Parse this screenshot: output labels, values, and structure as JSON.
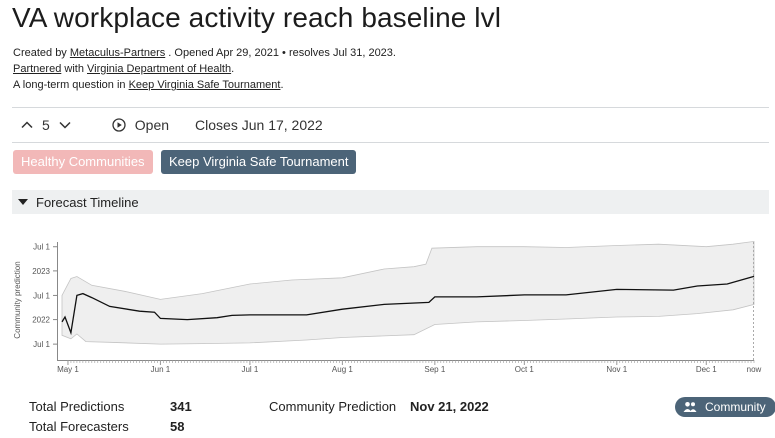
{
  "question": {
    "title": "VA workplace activity reach baseline lvl",
    "created_by_prefix": "Created by ",
    "creator": "Metaculus-Partners",
    "opened_resolves": " . Opened Apr 29, 2021 • resolves Jul 31, 2023.",
    "partnered_link": "Partnered",
    "partnered_with": " with ",
    "partner": "Virginia Department of Health",
    "partner_suffix": ".",
    "longterm_prefix": "A long-term question in ",
    "tournament_link": "Keep Virginia Safe Tournament",
    "longterm_suffix": "."
  },
  "toolbar": {
    "vote_count": "5",
    "status": "Open",
    "closes": "Closes Jun 17, 2022"
  },
  "tags": [
    "Healthy Communities",
    "Keep Virginia Safe Tournament"
  ],
  "forecast_section": {
    "label": "Forecast Timeline"
  },
  "stats": {
    "total_predictions_label": "Total Predictions",
    "total_predictions": "341",
    "total_forecasters_label": "Total Forecasters",
    "total_forecasters": "58",
    "community_prediction_label": "Community Prediction",
    "community_prediction": "Nov 21, 2022",
    "community_button": "Community"
  },
  "icons": [
    "chevron-up-icon",
    "chevron-down-icon",
    "play-circle-icon",
    "caret-down-icon",
    "people-icon"
  ],
  "colors": {
    "tag_pink": "#f2b8b8",
    "tag_slate": "#4c6478",
    "band_fill": "#efefef",
    "median_line": "#111111"
  },
  "chart_data": {
    "type": "line",
    "ylabel": "Community prediction",
    "y_ticks": [
      "Jul 1",
      "2023",
      "Jul 1",
      "2022",
      "Jul 1"
    ],
    "x_ticks": [
      "May 1",
      "Jun 1",
      "Jul 1",
      "Aug 1",
      "Sep 1",
      "Oct 1",
      "Nov 1",
      "Dec 1",
      "now"
    ],
    "x_domain": [
      "2021-04-29",
      "2021-12-17"
    ],
    "y_domain": [
      "2021-06-17",
      "2023-08-13"
    ],
    "series": [
      {
        "key": "median",
        "points": [
          [
            "2021-04-29",
            "2021-12-15"
          ],
          [
            "2021-04-30",
            "2022-01-20"
          ],
          [
            "2021-05-02",
            "2021-09-25"
          ],
          [
            "2021-05-04",
            "2022-07-01"
          ],
          [
            "2021-05-06",
            "2022-07-15"
          ],
          [
            "2021-05-09",
            "2022-06-15"
          ],
          [
            "2021-05-15",
            "2022-04-10"
          ],
          [
            "2021-05-25",
            "2022-03-05"
          ],
          [
            "2021-05-30",
            "2022-02-25"
          ],
          [
            "2021-06-01",
            "2022-01-10"
          ],
          [
            "2021-06-10",
            "2022-01-01"
          ],
          [
            "2021-06-20",
            "2022-01-15"
          ],
          [
            "2021-06-25",
            "2022-02-01"
          ],
          [
            "2021-07-01",
            "2022-02-05"
          ],
          [
            "2021-07-20",
            "2022-02-05"
          ],
          [
            "2021-08-01",
            "2022-03-20"
          ],
          [
            "2021-08-15",
            "2022-04-25"
          ],
          [
            "2021-08-30",
            "2022-05-10"
          ],
          [
            "2021-09-01",
            "2022-06-20"
          ],
          [
            "2021-09-15",
            "2022-06-20"
          ],
          [
            "2021-10-01",
            "2022-07-05"
          ],
          [
            "2021-10-15",
            "2022-07-05"
          ],
          [
            "2021-11-01",
            "2022-08-15"
          ],
          [
            "2021-11-20",
            "2022-08-10"
          ],
          [
            "2021-11-28",
            "2022-09-10"
          ],
          [
            "2021-12-08",
            "2022-09-25"
          ],
          [
            "2021-12-17",
            "2022-11-21"
          ]
        ]
      },
      {
        "key": "upper",
        "points": [
          [
            "2021-04-29",
            "2022-07-01"
          ],
          [
            "2021-05-02",
            "2022-11-05"
          ],
          [
            "2021-05-04",
            "2022-11-20"
          ],
          [
            "2021-05-09",
            "2022-09-15"
          ],
          [
            "2021-05-20",
            "2022-08-01"
          ],
          [
            "2021-06-01",
            "2022-06-01"
          ],
          [
            "2021-06-15",
            "2022-07-15"
          ],
          [
            "2021-07-01",
            "2022-09-25"
          ],
          [
            "2021-07-15",
            "2022-10-25"
          ],
          [
            "2021-08-01",
            "2022-11-10"
          ],
          [
            "2021-08-15",
            "2023-01-15"
          ],
          [
            "2021-08-25",
            "2023-02-01"
          ],
          [
            "2021-08-29",
            "2023-02-20"
          ],
          [
            "2021-08-31",
            "2023-06-20"
          ],
          [
            "2021-09-15",
            "2023-07-01"
          ],
          [
            "2021-10-01",
            "2023-07-01"
          ],
          [
            "2021-10-15",
            "2023-06-25"
          ],
          [
            "2021-11-01",
            "2023-07-10"
          ],
          [
            "2021-11-15",
            "2023-07-20"
          ],
          [
            "2021-12-01",
            "2023-07-01"
          ],
          [
            "2021-12-10",
            "2023-07-20"
          ],
          [
            "2021-12-17",
            "2023-08-10"
          ]
        ]
      },
      {
        "key": "lower",
        "points": [
          [
            "2021-04-29",
            "2021-09-05"
          ],
          [
            "2021-05-02",
            "2021-08-10"
          ],
          [
            "2021-05-04",
            "2021-09-15"
          ],
          [
            "2021-05-07",
            "2021-07-20"
          ],
          [
            "2021-05-15",
            "2021-07-15"
          ],
          [
            "2021-06-01",
            "2021-07-01"
          ],
          [
            "2021-06-15",
            "2021-07-05"
          ],
          [
            "2021-07-01",
            "2021-07-10"
          ],
          [
            "2021-07-20",
            "2021-08-01"
          ],
          [
            "2021-08-01",
            "2021-08-20"
          ],
          [
            "2021-08-25",
            "2021-09-10"
          ],
          [
            "2021-09-01",
            "2021-11-25"
          ],
          [
            "2021-09-15",
            "2021-12-15"
          ],
          [
            "2021-10-01",
            "2021-12-25"
          ],
          [
            "2021-10-15",
            "2022-01-05"
          ],
          [
            "2021-11-01",
            "2022-01-20"
          ],
          [
            "2021-11-15",
            "2022-01-25"
          ],
          [
            "2021-11-28",
            "2022-02-15"
          ],
          [
            "2021-12-10",
            "2022-03-15"
          ],
          [
            "2021-12-17",
            "2022-04-25"
          ]
        ]
      }
    ]
  }
}
